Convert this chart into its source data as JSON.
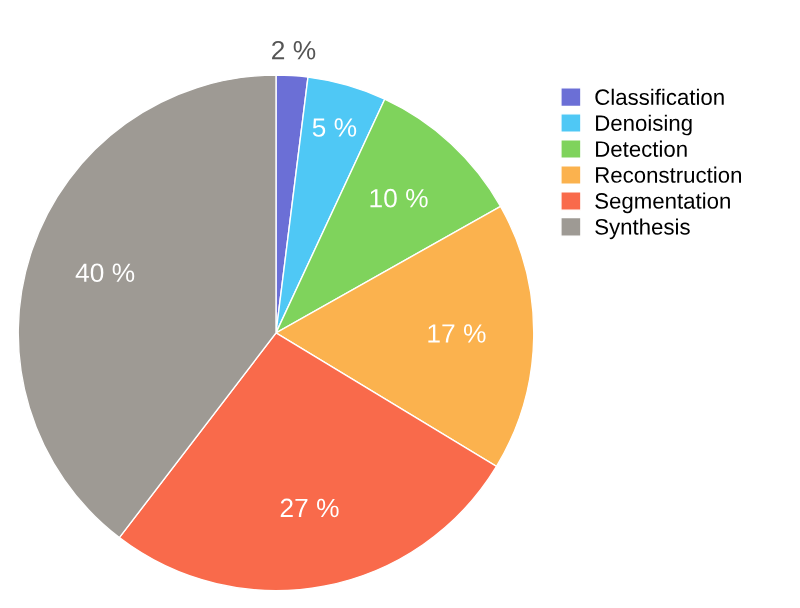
{
  "chart_data": {
    "type": "pie",
    "categories": [
      "Classification",
      "Denoising",
      "Detection",
      "Reconstruction",
      "Segmentation",
      "Synthesis"
    ],
    "values": [
      2,
      5,
      10,
      17,
      27,
      40
    ],
    "colors": [
      "#6b6fd6",
      "#4fc8f5",
      "#7fd35c",
      "#fbb24e",
      "#f96a4b",
      "#9e9a94"
    ],
    "value_labels": [
      "2 %",
      "5 %",
      "10 %",
      "17 %",
      "27 %",
      "40 %"
    ],
    "legend": "top right"
  }
}
